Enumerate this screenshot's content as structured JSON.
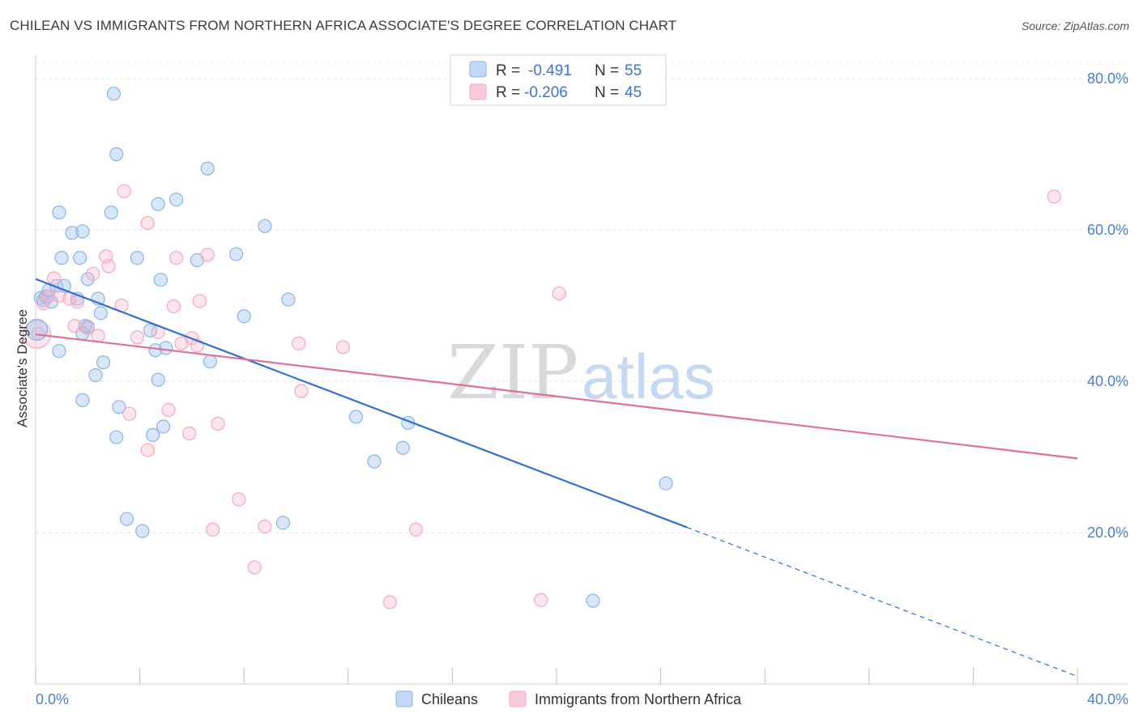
{
  "title": "CHILEAN VS IMMIGRANTS FROM NORTHERN AFRICA ASSOCIATE'S DEGREE CORRELATION CHART",
  "source": "Source: ZipAtlas.com",
  "watermark": {
    "zip": "ZIP",
    "atlas": "atlas"
  },
  "chart_data": {
    "type": "scatter",
    "xlabel": "",
    "ylabel": "Associate's Degree",
    "xlim": [
      0,
      40
    ],
    "ylim": [
      0,
      82
    ],
    "x_tick_labels": [
      "0.0%",
      "40.0%"
    ],
    "y_ticks": [
      20,
      40,
      60,
      80
    ],
    "y_tick_labels": [
      "20.0%",
      "40.0%",
      "60.0%",
      "80.0%"
    ],
    "grid": true,
    "legend_position": "top-center",
    "series": [
      {
        "name": "Chileans",
        "color": "#8ab4ea",
        "line_color": "#2f6fd6",
        "R": "-0.491",
        "N": "55",
        "trend": {
          "x0": 0,
          "y0": 53.5,
          "x1": 25,
          "y1": 20.7,
          "dash_x1": 40,
          "dash_y1": 1.0
        },
        "points": [
          [
            0.2,
            51.0
          ],
          [
            0.3,
            50.7
          ],
          [
            0.4,
            51.2
          ],
          [
            0.5,
            52.0
          ],
          [
            0.6,
            50.5
          ],
          [
            0.8,
            52.6
          ],
          [
            1.1,
            52.6
          ],
          [
            0.9,
            62.3
          ],
          [
            1.4,
            59.6
          ],
          [
            1.8,
            59.8
          ],
          [
            1.0,
            56.3
          ],
          [
            1.7,
            56.3
          ],
          [
            2.0,
            53.5
          ],
          [
            2.4,
            50.9
          ],
          [
            2.5,
            49.0
          ],
          [
            1.6,
            50.9
          ],
          [
            3.1,
            70.0
          ],
          [
            3.0,
            78.0
          ],
          [
            2.9,
            62.3
          ],
          [
            4.7,
            63.4
          ],
          [
            5.4,
            64.0
          ],
          [
            6.6,
            68.1
          ],
          [
            3.9,
            56.3
          ],
          [
            6.2,
            56.0
          ],
          [
            7.7,
            56.8
          ],
          [
            8.8,
            60.5
          ],
          [
            4.8,
            53.4
          ],
          [
            9.7,
            50.8
          ],
          [
            8.0,
            48.6
          ],
          [
            2.0,
            47.2
          ],
          [
            1.9,
            47.3
          ],
          [
            1.8,
            46.3
          ],
          [
            4.4,
            46.7
          ],
          [
            4.6,
            44.1
          ],
          [
            5.0,
            44.4
          ],
          [
            6.7,
            42.6
          ],
          [
            0.9,
            44.0
          ],
          [
            2.6,
            42.5
          ],
          [
            2.3,
            40.8
          ],
          [
            4.7,
            40.2
          ],
          [
            1.8,
            37.5
          ],
          [
            3.2,
            36.6
          ],
          [
            4.9,
            34.0
          ],
          [
            3.1,
            32.6
          ],
          [
            4.5,
            32.9
          ],
          [
            12.3,
            35.3
          ],
          [
            14.3,
            34.5
          ],
          [
            14.1,
            31.2
          ],
          [
            13.0,
            29.4
          ],
          [
            3.5,
            21.8
          ],
          [
            4.1,
            20.2
          ],
          [
            9.5,
            21.3
          ],
          [
            24.2,
            26.5
          ],
          [
            21.4,
            11.0
          ]
        ]
      },
      {
        "name": "Immigrants from Northern Africa",
        "color": "#f3a9bd",
        "line_color": "#e07097",
        "R": "-0.206",
        "N": "45",
        "trend": {
          "x0": 0,
          "y0": 46.2,
          "x1": 40,
          "y1": 29.8
        },
        "points": [
          [
            0.1,
            46.3
          ],
          [
            0.3,
            50.3
          ],
          [
            0.5,
            51.2
          ],
          [
            0.7,
            53.6
          ],
          [
            0.9,
            51.3
          ],
          [
            1.3,
            50.9
          ],
          [
            1.6,
            50.5
          ],
          [
            2.2,
            54.2
          ],
          [
            2.8,
            55.2
          ],
          [
            2.7,
            56.5
          ],
          [
            3.4,
            65.1
          ],
          [
            4.3,
            60.9
          ],
          [
            5.4,
            56.3
          ],
          [
            6.6,
            56.7
          ],
          [
            3.3,
            50.0
          ],
          [
            5.3,
            49.9
          ],
          [
            6.3,
            50.6
          ],
          [
            1.5,
            47.3
          ],
          [
            2.0,
            47.0
          ],
          [
            2.4,
            46.0
          ],
          [
            3.9,
            45.8
          ],
          [
            4.7,
            46.5
          ],
          [
            5.6,
            45.0
          ],
          [
            6.0,
            45.7
          ],
          [
            6.2,
            44.7
          ],
          [
            10.1,
            45.0
          ],
          [
            11.8,
            44.5
          ],
          [
            3.6,
            35.7
          ],
          [
            5.1,
            36.2
          ],
          [
            7.0,
            34.4
          ],
          [
            5.9,
            33.1
          ],
          [
            4.3,
            30.9
          ],
          [
            10.2,
            38.7
          ],
          [
            7.8,
            24.4
          ],
          [
            8.8,
            20.8
          ],
          [
            6.8,
            20.4
          ],
          [
            14.6,
            20.4
          ],
          [
            8.4,
            15.4
          ],
          [
            13.6,
            10.8
          ],
          [
            19.4,
            11.1
          ],
          [
            20.1,
            51.6
          ],
          [
            39.1,
            64.4
          ]
        ]
      }
    ]
  }
}
